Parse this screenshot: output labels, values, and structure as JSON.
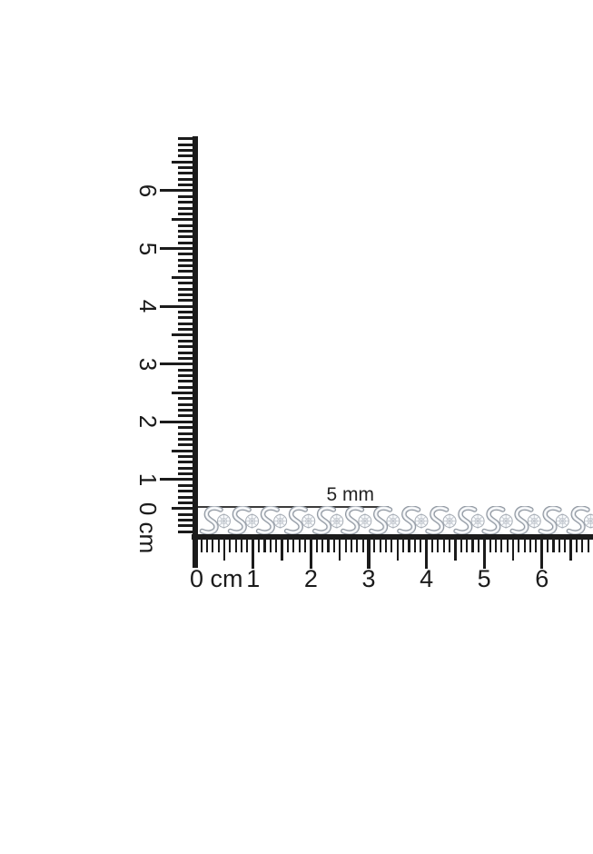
{
  "size_annotation": {
    "label": "5 mm"
  },
  "vertical_ruler": {
    "unit": "cm",
    "labels": [
      "6",
      "5",
      "4",
      "3",
      "2",
      "1",
      "0 cm"
    ]
  },
  "horizontal_ruler": {
    "unit": "cm",
    "labels": [
      "0 cm",
      "1",
      "2",
      "3",
      "4",
      "5",
      "6"
    ]
  },
  "colors": {
    "ruler_ink": "#1b1b1b",
    "annotation_ink": "#3c3c3c",
    "metal_silver": "#939aa3",
    "metal_highlight": "#ffffff",
    "diamond_fill": "#f8fafc",
    "diamond_facet": "#c2c7ce"
  }
}
